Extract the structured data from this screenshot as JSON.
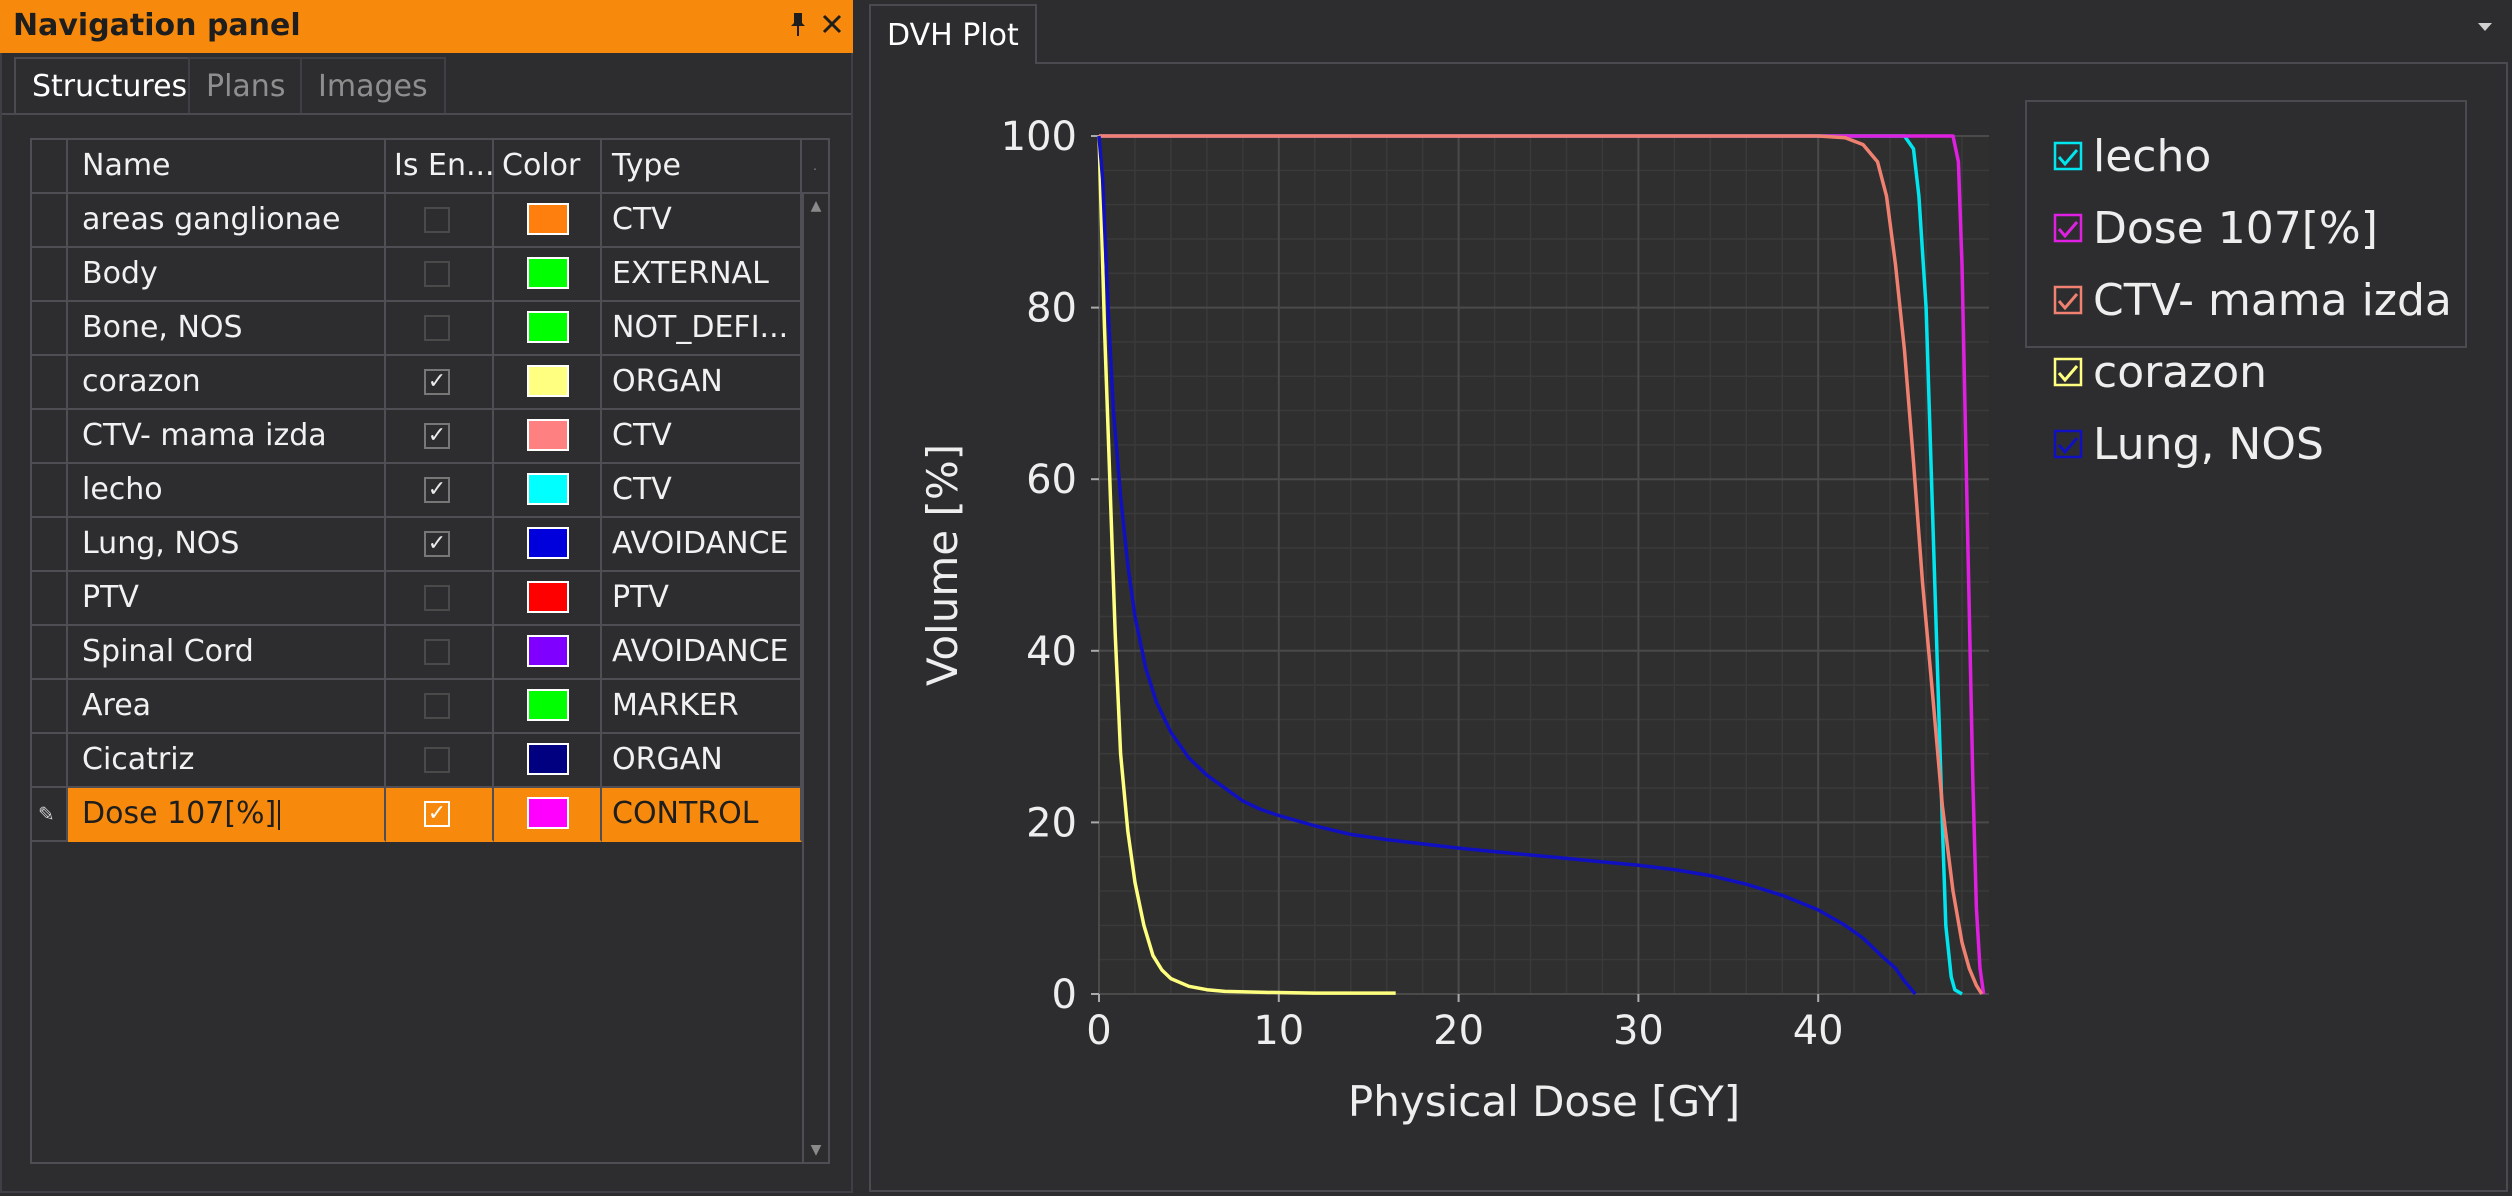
{
  "nav_panel": {
    "title": "Navigation panel",
    "pin_icon": "pin-icon",
    "close_icon": "close-icon",
    "tabs": [
      {
        "label": "Structures",
        "active": true
      },
      {
        "label": "Plans",
        "active": false
      },
      {
        "label": "Images",
        "active": false
      }
    ],
    "columns": [
      "Name",
      "Is En...",
      "Color",
      "Type",
      "."
    ],
    "rows": [
      {
        "name": "areas ganglionae",
        "enabled": false,
        "color": "#ff7f0e",
        "type": "CTV"
      },
      {
        "name": "Body",
        "enabled": false,
        "color": "#00ff00",
        "type": "EXTERNAL"
      },
      {
        "name": "Bone, NOS",
        "enabled": false,
        "color": "#00ff00",
        "type": "NOT_DEFI..."
      },
      {
        "name": "corazon",
        "enabled": true,
        "color": "#ffff80",
        "type": "ORGAN"
      },
      {
        "name": "CTV- mama izda",
        "enabled": true,
        "color": "#ff8080",
        "type": "CTV"
      },
      {
        "name": "lecho",
        "enabled": true,
        "color": "#00ffff",
        "type": "CTV"
      },
      {
        "name": "Lung, NOS",
        "enabled": true,
        "color": "#0000dd",
        "type": "AVOIDANCE"
      },
      {
        "name": "PTV",
        "enabled": false,
        "color": "#ff0000",
        "type": "PTV"
      },
      {
        "name": "Spinal Cord",
        "enabled": false,
        "color": "#8000ff",
        "type": "AVOIDANCE"
      },
      {
        "name": "Area",
        "enabled": false,
        "color": "#00ff00",
        "type": "MARKER"
      },
      {
        "name": "Cicatriz",
        "enabled": false,
        "color": "#000080",
        "type": "ORGAN"
      },
      {
        "name": "Dose 107[%]",
        "enabled": true,
        "color": "#ff00ff",
        "type": "CONTROL",
        "selected": true,
        "editing": true
      }
    ],
    "accent_color": "#f78a0c"
  },
  "dvh_panel": {
    "tab_label": "DVH Plot",
    "dropdown_icon": "chevron-down-icon"
  },
  "chart_data": {
    "type": "line",
    "title": "",
    "xlabel": "Physical Dose [GY]",
    "ylabel": "Volume [%]",
    "xlim": [
      0,
      49.5
    ],
    "ylim": [
      0,
      100
    ],
    "x_ticks": [
      0,
      10,
      20,
      30,
      40
    ],
    "y_ticks": [
      0,
      20,
      40,
      60,
      80,
      100
    ],
    "grid": true,
    "legend_placement": "top-right",
    "series": [
      {
        "name": "lecho",
        "color": "#00e5ee",
        "points": [
          [
            0,
            100
          ],
          [
            44.8,
            100
          ],
          [
            45.3,
            98.5
          ],
          [
            45.6,
            93
          ],
          [
            46.0,
            80
          ],
          [
            46.3,
            60
          ],
          [
            46.6,
            40
          ],
          [
            46.9,
            20
          ],
          [
            47.1,
            8
          ],
          [
            47.4,
            2
          ],
          [
            47.6,
            0.5
          ],
          [
            48.0,
            0
          ]
        ]
      },
      {
        "name": "Dose 107[%]",
        "color": "#e020e0",
        "points": [
          [
            0,
            100
          ],
          [
            47.5,
            100
          ],
          [
            47.8,
            97
          ],
          [
            48.0,
            85
          ],
          [
            48.2,
            65
          ],
          [
            48.4,
            45
          ],
          [
            48.6,
            25
          ],
          [
            48.8,
            10
          ],
          [
            49.0,
            3
          ],
          [
            49.2,
            0
          ]
        ]
      },
      {
        "name": "CTV- mama izda",
        "color": "#f08070",
        "points": [
          [
            0,
            100
          ],
          [
            40.0,
            100
          ],
          [
            41.5,
            99.8
          ],
          [
            42.5,
            99
          ],
          [
            43.3,
            97
          ],
          [
            43.8,
            93
          ],
          [
            44.3,
            85
          ],
          [
            44.8,
            75
          ],
          [
            45.3,
            62
          ],
          [
            45.8,
            48
          ],
          [
            46.4,
            34
          ],
          [
            46.9,
            22
          ],
          [
            47.5,
            12
          ],
          [
            48.0,
            6
          ],
          [
            48.4,
            3
          ],
          [
            48.8,
            1
          ],
          [
            49.1,
            0
          ]
        ]
      },
      {
        "name": "corazon",
        "color": "#ffff80",
        "points": [
          [
            0,
            100
          ],
          [
            0.3,
            78
          ],
          [
            0.6,
            60
          ],
          [
            0.9,
            42
          ],
          [
            1.2,
            28
          ],
          [
            1.6,
            19
          ],
          [
            2.0,
            13
          ],
          [
            2.5,
            8
          ],
          [
            3.0,
            4.5
          ],
          [
            3.5,
            2.8
          ],
          [
            4.0,
            1.8
          ],
          [
            5.0,
            0.9
          ],
          [
            6.0,
            0.5
          ],
          [
            7.0,
            0.3
          ],
          [
            9.0,
            0.2
          ],
          [
            12.0,
            0.1
          ],
          [
            16.5,
            0.1
          ]
        ]
      },
      {
        "name": "Lung, NOS",
        "color": "#1010c0",
        "points": [
          [
            0,
            100
          ],
          [
            0.2,
            95
          ],
          [
            0.5,
            80
          ],
          [
            0.8,
            68
          ],
          [
            1.2,
            58
          ],
          [
            1.6,
            50
          ],
          [
            2.0,
            44
          ],
          [
            2.6,
            38
          ],
          [
            3.2,
            34
          ],
          [
            4.0,
            30.5
          ],
          [
            5.0,
            27.5
          ],
          [
            6.0,
            25.5
          ],
          [
            7.0,
            24
          ],
          [
            8.0,
            22.5
          ],
          [
            9.0,
            21.5
          ],
          [
            10.0,
            20.8
          ],
          [
            12.0,
            19.6
          ],
          [
            14.0,
            18.6
          ],
          [
            16.0,
            18.0
          ],
          [
            18.0,
            17.5
          ],
          [
            20.0,
            17.0
          ],
          [
            22.0,
            16.6
          ],
          [
            24.0,
            16.2
          ],
          [
            26.0,
            15.8
          ],
          [
            28.0,
            15.4
          ],
          [
            30.0,
            15.0
          ],
          [
            32.0,
            14.5
          ],
          [
            34.0,
            13.8
          ],
          [
            36.0,
            12.8
          ],
          [
            38.0,
            11.5
          ],
          [
            40.0,
            9.8
          ],
          [
            41.5,
            8.0
          ],
          [
            42.5,
            6.5
          ],
          [
            43.5,
            4.5
          ],
          [
            44.3,
            3.0
          ],
          [
            44.8,
            1.5
          ],
          [
            45.2,
            0.5
          ],
          [
            45.4,
            0
          ]
        ]
      }
    ]
  }
}
